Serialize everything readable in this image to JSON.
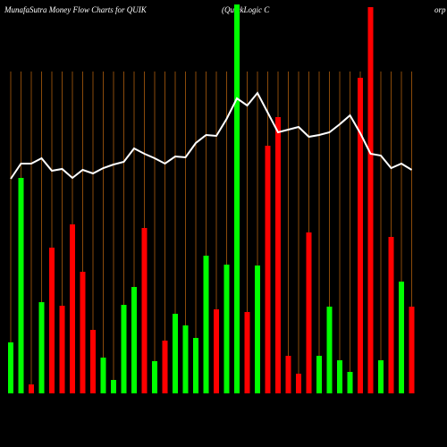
{
  "chart_data": {
    "type": "bar",
    "title": "MunafaSutra  Money Flow  Charts for QUIK",
    "subtitle": "(QuickLogic C",
    "subtitle_end": "orp",
    "grid": true,
    "ylim": [
      0,
      440
    ],
    "bar_values": [
      57,
      241,
      10,
      102,
      163,
      98,
      189,
      136,
      71,
      40,
      15,
      99,
      119,
      185,
      36,
      59,
      89,
      76,
      62,
      154,
      94,
      144,
      435,
      91,
      143,
      277,
      309,
      42,
      22,
      180,
      42,
      97,
      37,
      24,
      353,
      432,
      37,
      175,
      125,
      97
    ],
    "bar_colors": [
      "#00ff00",
      "#00ff00",
      "#ff0000",
      "#00ff00",
      "#ff0000",
      "#ff0000",
      "#ff0000",
      "#ff0000",
      "#ff0000",
      "#00ff00",
      "#00ff00",
      "#00ff00",
      "#00ff00",
      "#ff0000",
      "#00ff00",
      "#ff0000",
      "#00ff00",
      "#00ff00",
      "#00ff00",
      "#00ff00",
      "#ff0000",
      "#00ff00",
      "#00ff00",
      "#ff0000",
      "#00ff00",
      "#ff0000",
      "#ff0000",
      "#ff0000",
      "#ff0000",
      "#ff0000",
      "#00ff00",
      "#00ff00",
      "#00ff00",
      "#00ff00",
      "#ff0000",
      "#ff0000",
      "#00ff00",
      "#ff0000",
      "#00ff00",
      "#ff0000"
    ],
    "line_values": [
      240,
      257,
      257,
      263,
      249,
      251,
      241,
      250,
      246,
      252,
      256,
      259,
      274,
      268,
      263,
      257,
      265,
      264,
      280,
      289,
      288,
      307,
      330,
      322,
      336,
      314,
      292,
      295,
      298,
      287,
      289,
      292,
      301,
      311,
      291,
      268,
      266,
      252,
      257,
      250
    ],
    "line_color": "#ffffff",
    "grid_color": "#8a4a0a"
  }
}
